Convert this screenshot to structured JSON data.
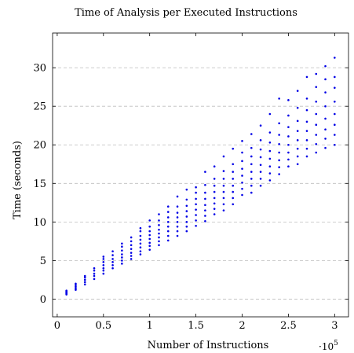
{
  "chart_data": {
    "type": "scatter",
    "title": "Time of Analysis per Executed Instructions",
    "xlabel": "Number of Instructions",
    "ylabel": "Time (seconds)",
    "x_scale_label": "·10",
    "x_scale_exponent": "5",
    "xlim": [
      -0.05,
      3.15
    ],
    "ylim": [
      -2.3,
      34.5
    ],
    "x_ticks": [
      0,
      0.5,
      1,
      1.5,
      2,
      2.5,
      3
    ],
    "x_tick_labels": [
      "0",
      "0.5",
      "1",
      "1.5",
      "2",
      "2.5",
      "3"
    ],
    "y_ticks": [
      0,
      5,
      10,
      15,
      20,
      25,
      30
    ],
    "y_tick_labels": [
      "0",
      "5",
      "10",
      "15",
      "20",
      "25",
      "30"
    ],
    "grid": "y-major-dashed",
    "point_color": "#0000e6",
    "series": [
      {
        "groups": [
          {
            "x": 0.1,
            "y": [
              0.6,
              0.7,
              0.8,
              0.9,
              1.0,
              1.1
            ]
          },
          {
            "x": 0.2,
            "y": [
              1.2,
              1.4,
              1.6,
              1.8,
              2.0
            ]
          },
          {
            "x": 0.3,
            "y": [
              1.9,
              2.2,
              2.5,
              2.8,
              3.0
            ]
          },
          {
            "x": 0.4,
            "y": [
              2.6,
              3.0,
              3.3,
              3.7,
              4.0
            ]
          },
          {
            "x": 0.5,
            "y": [
              3.3,
              3.7,
              4.0,
              4.4,
              4.8,
              5.2,
              5.5
            ]
          },
          {
            "x": 0.6,
            "y": [
              4.0,
              4.4,
              4.8,
              5.2,
              5.7,
              6.2
            ]
          },
          {
            "x": 0.7,
            "y": [
              4.6,
              5.0,
              5.4,
              5.8,
              6.3,
              6.8,
              7.2
            ]
          },
          {
            "x": 0.8,
            "y": [
              5.2,
              5.6,
              6.0,
              6.5,
              7.0,
              7.5,
              8.0
            ]
          },
          {
            "x": 0.9,
            "y": [
              5.8,
              6.2,
              6.7,
              7.2,
              7.7,
              8.2,
              8.8,
              9.2
            ]
          },
          {
            "x": 1.0,
            "y": [
              6.4,
              6.9,
              7.3,
              7.8,
              8.3,
              8.8,
              9.4,
              10.2
            ]
          },
          {
            "x": 1.1,
            "y": [
              7.0,
              7.5,
              8.0,
              8.5,
              9.0,
              9.6,
              10.2,
              11.0
            ]
          },
          {
            "x": 1.2,
            "y": [
              7.6,
              8.2,
              8.8,
              9.4,
              10.0,
              10.6,
              11.3,
              12.0
            ]
          },
          {
            "x": 1.3,
            "y": [
              8.2,
              8.8,
              9.4,
              10.0,
              10.6,
              11.2,
              12.0,
              13.3
            ]
          },
          {
            "x": 1.4,
            "y": [
              8.8,
              9.4,
              10.0,
              10.7,
              11.4,
              12.1,
              12.9,
              14.2
            ]
          },
          {
            "x": 1.5,
            "y": [
              9.5,
              10.2,
              10.9,
              11.6,
              12.3,
              13.0,
              13.8,
              14.5
            ]
          },
          {
            "x": 1.6,
            "y": [
              10.1,
              10.8,
              11.5,
              12.2,
              13.0,
              13.8,
              14.8,
              16.5
            ]
          },
          {
            "x": 1.7,
            "y": [
              11.0,
              11.7,
              12.4,
              13.1,
              13.9,
              14.7,
              15.6,
              17.2
            ]
          },
          {
            "x": 1.8,
            "y": [
              11.5,
              12.3,
              13.1,
              13.9,
              14.7,
              15.6,
              16.6,
              18.5
            ]
          },
          {
            "x": 1.9,
            "y": [
              12.3,
              13.1,
              13.9,
              14.7,
              15.6,
              16.5,
              17.5,
              19.5
            ]
          },
          {
            "x": 2.0,
            "y": [
              13.5,
              14.3,
              15.1,
              16.0,
              16.9,
              17.9,
              19.0,
              20.5
            ]
          },
          {
            "x": 2.1,
            "y": [
              13.8,
              14.7,
              15.6,
              16.5,
              17.5,
              18.5,
              19.6,
              21.4
            ]
          },
          {
            "x": 2.2,
            "y": [
              14.7,
              15.6,
              16.5,
              17.4,
              18.4,
              19.4,
              20.6,
              22.5
            ]
          },
          {
            "x": 2.3,
            "y": [
              15.4,
              16.3,
              17.2,
              18.2,
              19.2,
              20.3,
              21.6,
              24.0
            ]
          },
          {
            "x": 2.4,
            "y": [
              16.2,
              17.1,
              18.0,
              19.0,
              20.1,
              21.3,
              22.8,
              26.0
            ]
          },
          {
            "x": 2.5,
            "y": [
              17.2,
              18.1,
              19.0,
              20.0,
              21.1,
              22.3,
              23.8,
              25.8
            ]
          },
          {
            "x": 2.6,
            "y": [
              17.5,
              18.5,
              19.5,
              20.6,
              21.8,
              23.1,
              24.8,
              27.0
            ]
          },
          {
            "x": 2.7,
            "y": [
              18.5,
              19.5,
              20.6,
              21.8,
              23.0,
              24.5,
              26.0,
              28.8
            ]
          },
          {
            "x": 2.8,
            "y": [
              19.0,
              20.1,
              21.3,
              22.6,
              24.0,
              25.6,
              27.5,
              29.2
            ]
          },
          {
            "x": 2.9,
            "y": [
              19.6,
              20.8,
              22.0,
              23.4,
              25.0,
              26.8,
              28.5,
              30.2
            ]
          },
          {
            "x": 3.0,
            "y": [
              20.0,
              21.3,
              22.6,
              24.0,
              25.6,
              27.4,
              28.8,
              31.3
            ]
          }
        ]
      }
    ]
  }
}
